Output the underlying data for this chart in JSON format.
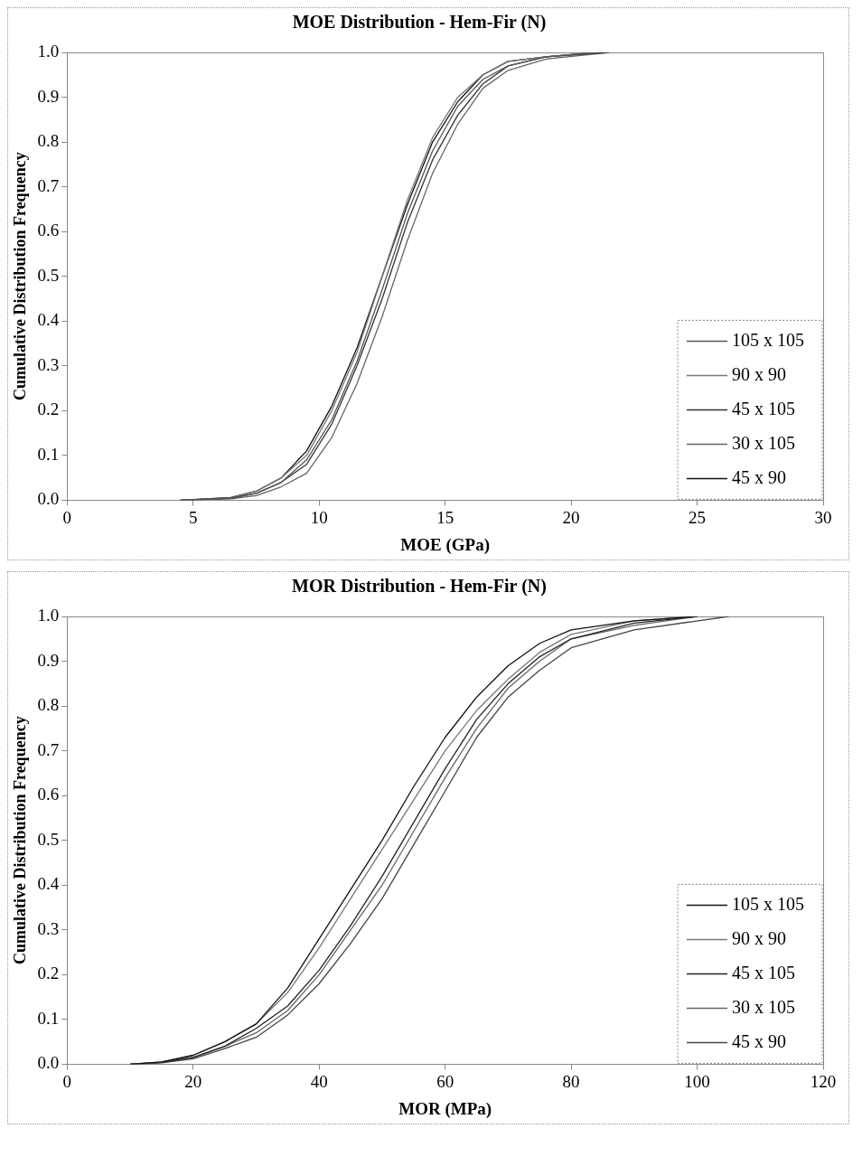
{
  "chart_data": [
    {
      "type": "line",
      "title": "MOE Distribution - Hem-Fir (N)",
      "xlabel": "MOE (GPa)",
      "ylabel": "Cumulative Distribution Frequency",
      "xlim": [
        0,
        30
      ],
      "xticks": [
        0,
        5,
        10,
        15,
        20,
        25,
        30
      ],
      "ylim": [
        0,
        1
      ],
      "yticks": [
        {
          "value": 0,
          "label": "0.0"
        },
        {
          "value": 0.1,
          "label": "0.1"
        },
        {
          "value": 0.2,
          "label": "0.2"
        },
        {
          "value": 0.3,
          "label": "0.3"
        },
        {
          "value": 0.4,
          "label": "0.4"
        },
        {
          "value": 0.5,
          "label": "0.5"
        },
        {
          "value": 0.6,
          "label": "0.6"
        },
        {
          "value": 0.7,
          "label": "0.7"
        },
        {
          "value": 0.8,
          "label": "0.8"
        },
        {
          "value": 0.9,
          "label": "0.9"
        },
        {
          "value": 1,
          "label": "1.0"
        }
      ],
      "grid": false,
      "legend": "bottom right",
      "marker": "none",
      "line_style": "solid",
      "series": [
        {
          "name": "105 x 105",
          "color": "#555555",
          "x": [
            4.5,
            6.5,
            7.5,
            8.5,
            9.5,
            10.5,
            11.5,
            12.5,
            13.5,
            14.5,
            15.5,
            16.5,
            17.5,
            19,
            21
          ],
          "values": [
            0,
            0.005,
            0.015,
            0.04,
            0.09,
            0.18,
            0.31,
            0.47,
            0.64,
            0.78,
            0.88,
            0.94,
            0.97,
            0.99,
            1
          ]
        },
        {
          "name": "90 x 90",
          "color": "#777777",
          "x": [
            4.5,
            6.5,
            7.5,
            8.5,
            9.5,
            10.5,
            11.5,
            12.5,
            13.5,
            14.5,
            15.5,
            16.5,
            17.5,
            19,
            21
          ],
          "values": [
            0,
            0.005,
            0.02,
            0.05,
            0.1,
            0.2,
            0.33,
            0.5,
            0.67,
            0.81,
            0.9,
            0.95,
            0.98,
            0.99,
            1
          ]
        },
        {
          "name": "45 x 105",
          "color": "#333333",
          "x": [
            4.5,
            6.5,
            7.5,
            8.5,
            9.5,
            10.5,
            11.5,
            12.5,
            13.5,
            14.5,
            15.5,
            16.5,
            17.5,
            19,
            21.5
          ],
          "values": [
            0,
            0.004,
            0.015,
            0.04,
            0.08,
            0.17,
            0.3,
            0.45,
            0.62,
            0.76,
            0.86,
            0.93,
            0.97,
            0.99,
            1
          ]
        },
        {
          "name": "30 x 105",
          "color": "#666666",
          "x": [
            4.5,
            6.5,
            7.5,
            8.5,
            9.5,
            10.5,
            11.5,
            12.5,
            13.5,
            14.5,
            15.5,
            16.5,
            17.5,
            19,
            21.5
          ],
          "values": [
            0,
            0.003,
            0.01,
            0.03,
            0.06,
            0.14,
            0.26,
            0.41,
            0.58,
            0.73,
            0.84,
            0.92,
            0.96,
            0.985,
            1
          ]
        },
        {
          "name": "45 x 90",
          "color": "#111111",
          "x": [
            4.5,
            6.5,
            7.5,
            8.5,
            9.5,
            10.5,
            11.5,
            12.5,
            13.5,
            14.5,
            15.5,
            16.5,
            17.5,
            19,
            21
          ],
          "values": [
            0,
            0.006,
            0.02,
            0.05,
            0.11,
            0.21,
            0.34,
            0.5,
            0.66,
            0.8,
            0.89,
            0.95,
            0.98,
            0.99,
            1
          ]
        }
      ]
    },
    {
      "type": "line",
      "title": "MOR Distribution - Hem-Fir (N)",
      "xlabel": "MOR (MPa)",
      "ylabel": "Cumulative Distribution Frequency",
      "xlim": [
        0,
        120
      ],
      "xticks": [
        0,
        20,
        40,
        60,
        80,
        100,
        120
      ],
      "ylim": [
        0,
        1
      ],
      "yticks": [
        {
          "value": 0,
          "label": "0.0"
        },
        {
          "value": 0.1,
          "label": "0.1"
        },
        {
          "value": 0.2,
          "label": "0.2"
        },
        {
          "value": 0.3,
          "label": "0.3"
        },
        {
          "value": 0.4,
          "label": "0.4"
        },
        {
          "value": 0.5,
          "label": "0.5"
        },
        {
          "value": 0.6,
          "label": "0.6"
        },
        {
          "value": 0.7,
          "label": "0.7"
        },
        {
          "value": 0.8,
          "label": "0.8"
        },
        {
          "value": 0.9,
          "label": "0.9"
        },
        {
          "value": 1,
          "label": "1.0"
        }
      ],
      "grid": false,
      "legend": "bottom right",
      "marker": "none",
      "line_style": "solid",
      "series": [
        {
          "name": "105 x 105",
          "color": "#111111",
          "x": [
            10,
            15,
            20,
            25,
            30,
            35,
            40,
            45,
            50,
            55,
            60,
            65,
            70,
            75,
            80,
            90,
            100
          ],
          "values": [
            0,
            0.005,
            0.02,
            0.05,
            0.09,
            0.17,
            0.28,
            0.39,
            0.5,
            0.62,
            0.73,
            0.82,
            0.89,
            0.94,
            0.97,
            0.99,
            1
          ]
        },
        {
          "name": "90 x 90",
          "color": "#777777",
          "x": [
            10,
            15,
            20,
            25,
            30,
            35,
            40,
            45,
            50,
            55,
            60,
            65,
            70,
            75,
            80,
            90,
            100
          ],
          "values": [
            0,
            0.005,
            0.02,
            0.05,
            0.09,
            0.16,
            0.26,
            0.37,
            0.48,
            0.59,
            0.7,
            0.79,
            0.86,
            0.92,
            0.96,
            0.99,
            1
          ]
        },
        {
          "name": "45 x 105",
          "color": "#222222",
          "x": [
            10,
            15,
            20,
            25,
            30,
            35,
            40,
            45,
            50,
            55,
            60,
            65,
            70,
            75,
            80,
            90,
            100
          ],
          "values": [
            0,
            0.004,
            0.015,
            0.04,
            0.08,
            0.13,
            0.21,
            0.31,
            0.42,
            0.54,
            0.66,
            0.77,
            0.85,
            0.91,
            0.95,
            0.985,
            1
          ]
        },
        {
          "name": "30 x 105",
          "color": "#666666",
          "x": [
            10,
            15,
            20,
            25,
            30,
            35,
            40,
            45,
            50,
            55,
            60,
            65,
            70,
            75,
            80,
            90,
            100
          ],
          "values": [
            0,
            0.004,
            0.015,
            0.04,
            0.07,
            0.12,
            0.2,
            0.3,
            0.4,
            0.52,
            0.64,
            0.75,
            0.84,
            0.9,
            0.95,
            0.98,
            1
          ]
        },
        {
          "name": "45 x 90",
          "color": "#444444",
          "x": [
            10,
            15,
            20,
            25,
            30,
            35,
            40,
            45,
            50,
            55,
            60,
            65,
            70,
            75,
            80,
            90,
            105
          ],
          "values": [
            0,
            0.003,
            0.012,
            0.035,
            0.06,
            0.11,
            0.18,
            0.27,
            0.37,
            0.49,
            0.61,
            0.73,
            0.82,
            0.88,
            0.93,
            0.97,
            1
          ]
        }
      ]
    }
  ]
}
